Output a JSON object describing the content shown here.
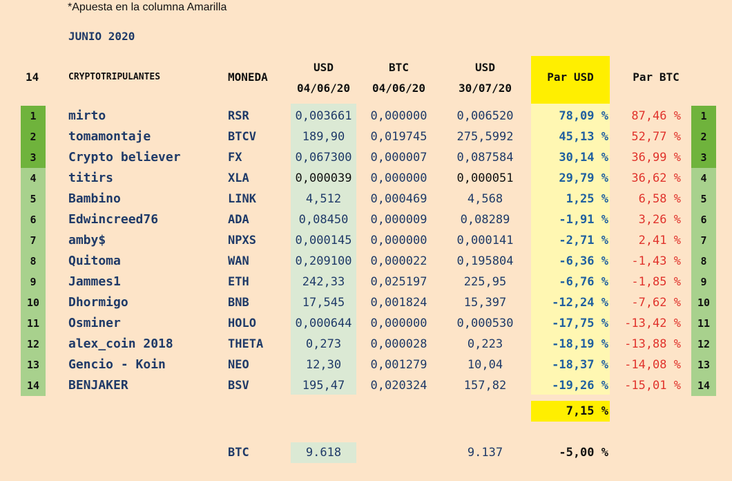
{
  "note": "*Apuesta en la columna Amarilla",
  "month": "JUNIO 2020",
  "headers": {
    "count": "14",
    "participants": "CRYPTOTRIPULANTES",
    "coin": "MONEDA",
    "usd1_top": "USD",
    "usd1_date": "04/06/20",
    "btc1_top": "BTC",
    "btc1_date": "04/06/20",
    "usd2_top": "USD",
    "usd2_date": "30/07/20",
    "par_usd": "Par USD",
    "par_btc": "Par BTC"
  },
  "rows": [
    {
      "rank": "1",
      "name": "mirto",
      "coin": "RSR",
      "usd1": "0,003661",
      "btc1": "0,000000",
      "usd2": "0,006520",
      "par_usd": "78,09 %",
      "par_btc": "87,46 %"
    },
    {
      "rank": "2",
      "name": "tomamontaje",
      "coin": "BTCV",
      "usd1": "189,90",
      "btc1": "0,019745",
      "usd2": "275,5992",
      "par_usd": "45,13 %",
      "par_btc": "52,77 %"
    },
    {
      "rank": "3",
      "name": "Crypto believer",
      "coin": "FX",
      "usd1": "0,067300",
      "btc1": "0,000007",
      "usd2": "0,087584",
      "par_usd": "30,14 %",
      "par_btc": "36,99 %"
    },
    {
      "rank": "4",
      "name": "titirs",
      "coin": "XLA",
      "usd1": "0,000039",
      "btc1": "0,000000",
      "usd2": "0,000051",
      "par_usd": "29,79 %",
      "par_btc": "36,62 %"
    },
    {
      "rank": "5",
      "name": "Bambino",
      "coin": "LINK",
      "usd1": "4,512",
      "btc1": "0,000469",
      "usd2": "4,568",
      "par_usd": "1,25 %",
      "par_btc": "6,58 %"
    },
    {
      "rank": "6",
      "name": "Edwincreed76",
      "coin": "ADA",
      "usd1": "0,08450",
      "btc1": "0,000009",
      "usd2": "0,08289",
      "par_usd": "-1,91 %",
      "par_btc": "3,26 %"
    },
    {
      "rank": "7",
      "name": "amby$",
      "coin": "NPXS",
      "usd1": "0,000145",
      "btc1": "0,000000",
      "usd2": "0,000141",
      "par_usd": "-2,71 %",
      "par_btc": "2,41 %"
    },
    {
      "rank": "8",
      "name": "Quitoma",
      "coin": "WAN",
      "usd1": "0,209100",
      "btc1": "0,000022",
      "usd2": "0,195804",
      "par_usd": "-6,36 %",
      "par_btc": "-1,43 %"
    },
    {
      "rank": "9",
      "name": "Jammes1",
      "coin": "ETH",
      "usd1": "242,33",
      "btc1": "0,025197",
      "usd2": "225,95",
      "par_usd": "-6,76 %",
      "par_btc": "-1,85 %"
    },
    {
      "rank": "10",
      "name": "Dhormigo",
      "coin": "BNB",
      "usd1": "17,545",
      "btc1": "0,001824",
      "usd2": "15,397",
      "par_usd": "-12,24 %",
      "par_btc": "-7,62 %"
    },
    {
      "rank": "11",
      "name": "Osminer",
      "coin": "HOLO",
      "usd1": "0,000644",
      "btc1": "0,000000",
      "usd2": "0,000530",
      "par_usd": "-17,75 %",
      "par_btc": "-13,42 %"
    },
    {
      "rank": "12",
      "name": "alex_coin 2018",
      "coin": "THETA",
      "usd1": "0,273",
      "btc1": "0,000028",
      "usd2": "0,223",
      "par_usd": "-18,19 %",
      "par_btc": "-13,88 %"
    },
    {
      "rank": "13",
      "name": "Gencio - Koin",
      "coin": "NEO",
      "usd1": "12,30",
      "btc1": "0,001279",
      "usd2": "10,04",
      "par_usd": "-18,37 %",
      "par_btc": "-14,08 %"
    },
    {
      "rank": "14",
      "name": "BENJAKER",
      "coin": "BSV",
      "usd1": "195,47",
      "btc1": "0,020324",
      "usd2": "157,82",
      "par_usd": "-19,26 %",
      "par_btc": "-15,01 %"
    }
  ],
  "total": {
    "par_usd": "7,15 %"
  },
  "btc_row": {
    "coin": "BTC",
    "usd1": "9.618",
    "usd2": "9.137",
    "par_usd": "-5,00 %"
  },
  "colors": {
    "background": "#fde4c8",
    "rank_top3": "#6fb33c",
    "rank_other": "#a8d18d",
    "usd_column": "#dbe9d4",
    "yellow_header": "#ffef00",
    "yellow_column": "#fff7b2",
    "text_blue": "#1f3a68",
    "par_usd_blue": "#1f5fa0",
    "par_btc_red": "#e0332c"
  }
}
